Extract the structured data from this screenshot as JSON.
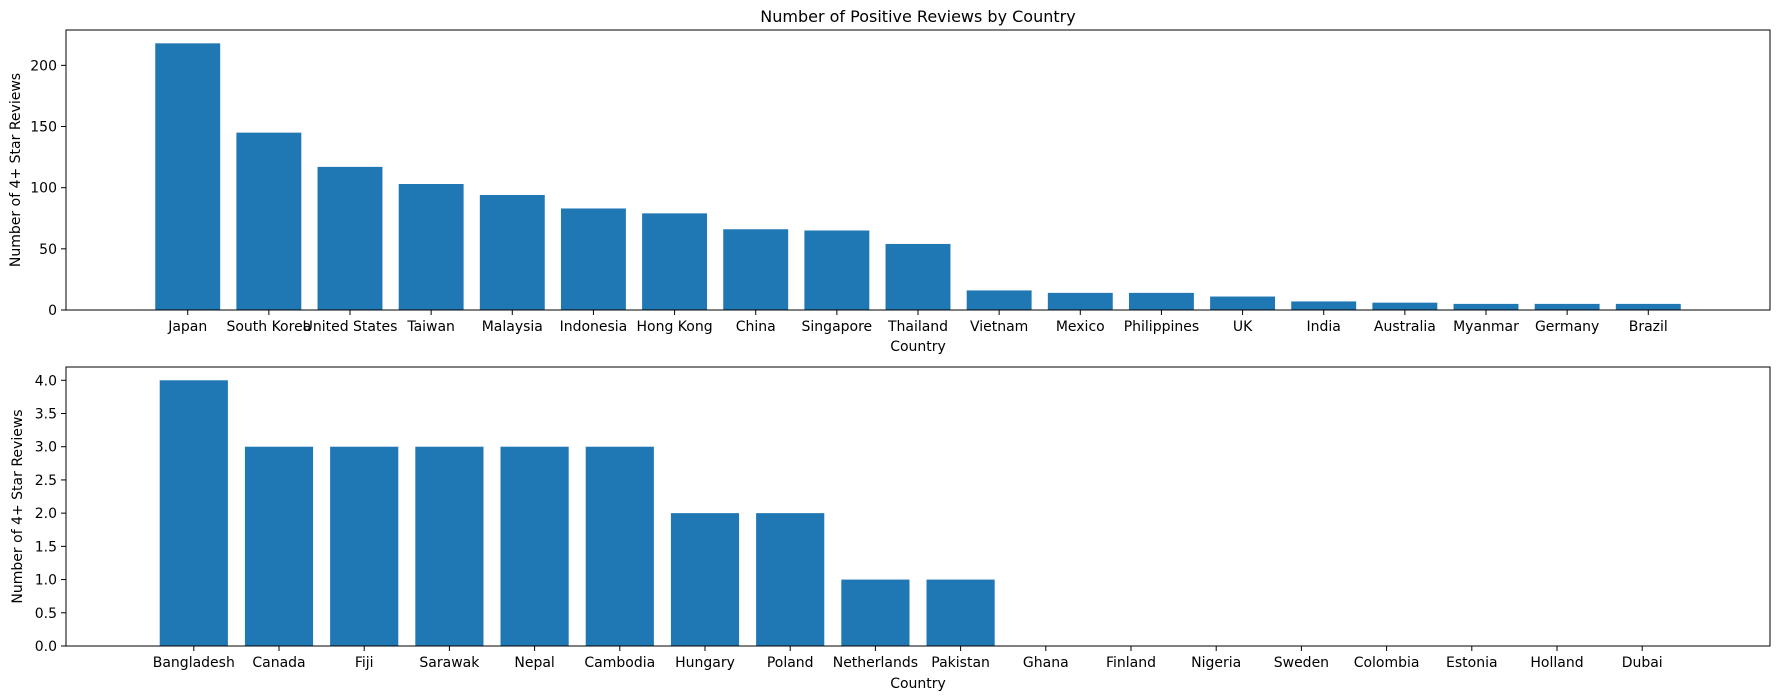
{
  "colors": {
    "bar": "#1f77b4",
    "axis": "#000000",
    "background": "#ffffff"
  },
  "chart_data": [
    {
      "type": "bar",
      "title": "Number of Positive Reviews by Country",
      "xlabel": "Country",
      "ylabel": "Number of 4+ Star Reviews",
      "ylim": [
        0,
        228.9
      ],
      "yticks": [
        0,
        50,
        100,
        150,
        200
      ],
      "ytick_labels": [
        "0",
        "50",
        "100",
        "150",
        "200"
      ],
      "grid": false,
      "categories": [
        "Japan",
        "South Korea",
        "United States",
        "Taiwan",
        "Malaysia",
        "Indonesia",
        "Hong Kong",
        "China",
        "Singapore",
        "Thailand",
        "Vietnam",
        "Mexico",
        "Philippines",
        "UK",
        "India",
        "Australia",
        "Myanmar",
        "Germany",
        "Brazil"
      ],
      "values": [
        218,
        145,
        117,
        103,
        94,
        83,
        79,
        66,
        65,
        54,
        16,
        14,
        14,
        11,
        7,
        6,
        5,
        5,
        5
      ]
    },
    {
      "type": "bar",
      "title": "",
      "xlabel": "Country",
      "ylabel": "Number of 4+ Star Reviews",
      "ylim": [
        0,
        4.2
      ],
      "yticks": [
        0,
        0.5,
        1,
        1.5,
        2,
        2.5,
        3,
        3.5,
        4
      ],
      "ytick_labels": [
        "0.0",
        "0.5",
        "1.0",
        "1.5",
        "2.0",
        "2.5",
        "3.0",
        "3.5",
        "4.0"
      ],
      "grid": false,
      "categories": [
        "Bangladesh",
        "Canada",
        "Fiji",
        "Sarawak",
        "Nepal",
        "Cambodia",
        "Hungary",
        "Poland",
        "Netherlands",
        "Pakistan",
        "Ghana",
        "Finland",
        "Nigeria",
        "Sweden",
        "Colombia",
        "Estonia",
        "Holland",
        "Dubai"
      ],
      "values": [
        4,
        3,
        3,
        3,
        3,
        3,
        2,
        2,
        1,
        1,
        0,
        0,
        0,
        0,
        0,
        0,
        0,
        0
      ]
    }
  ]
}
